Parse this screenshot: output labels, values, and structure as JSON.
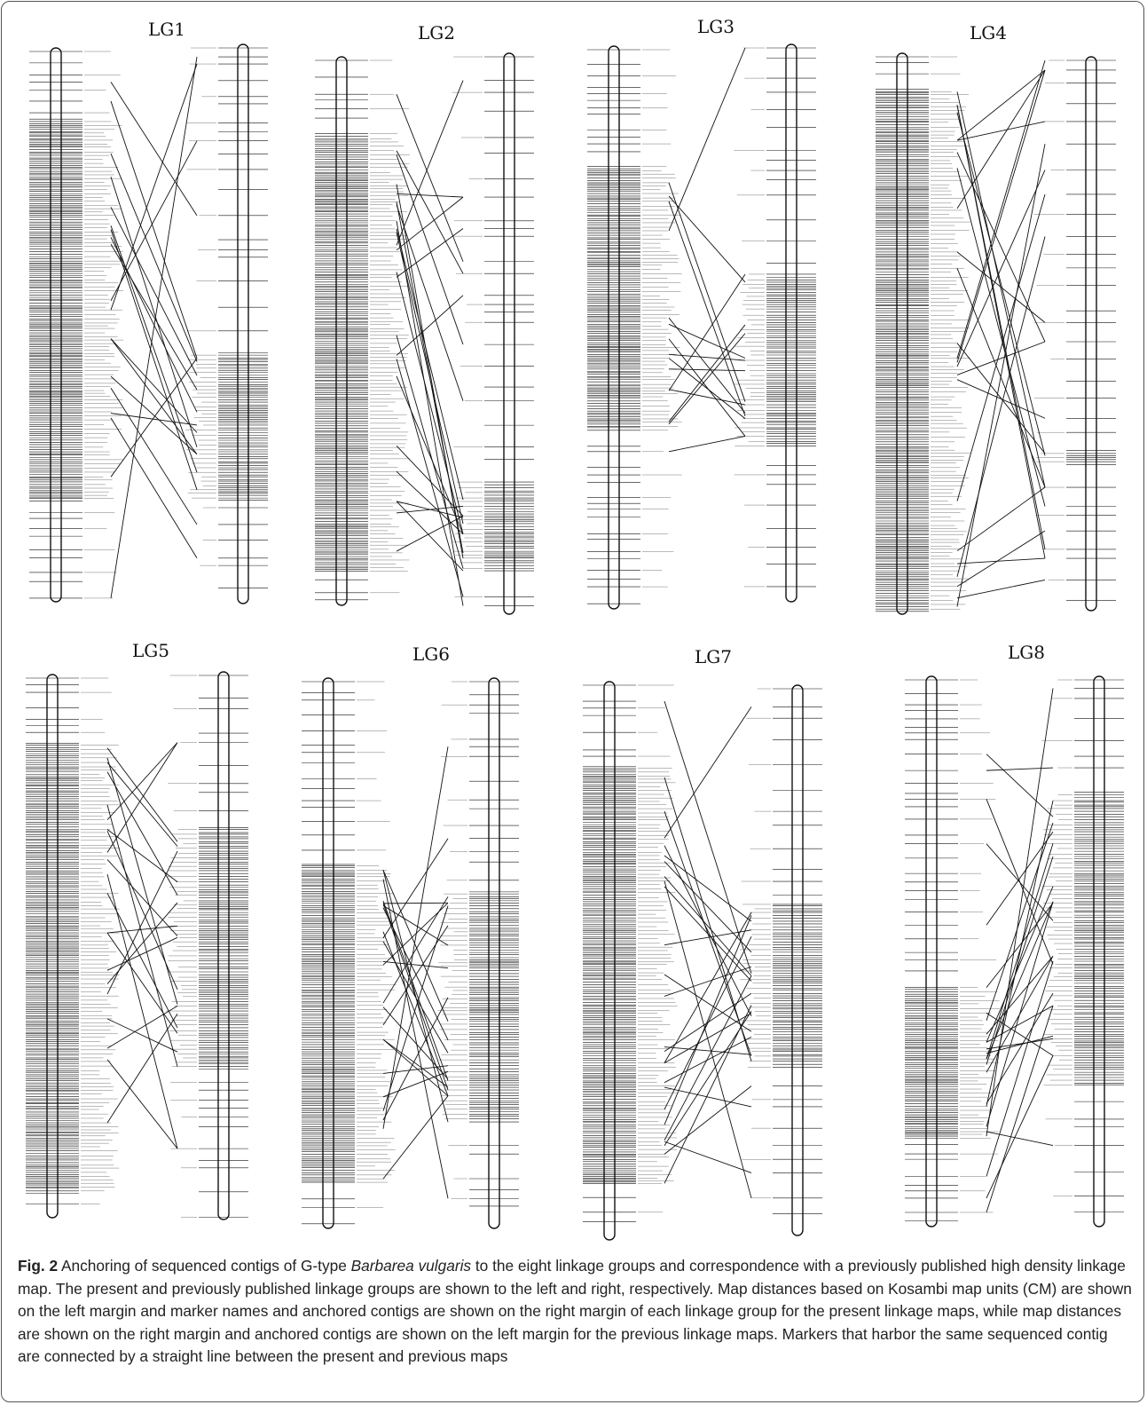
{
  "figure": {
    "panels": [
      {
        "title": "LG1"
      },
      {
        "title": "LG2"
      },
      {
        "title": "LG3"
      },
      {
        "title": "LG4"
      },
      {
        "title": "LG5"
      },
      {
        "title": "LG6"
      },
      {
        "title": "LG7"
      },
      {
        "title": "LG8"
      }
    ],
    "caption": {
      "label": "Fig. 2",
      "text_before": " Anchoring of sequenced contigs of G-type ",
      "species": "Barbarea vulgaris",
      "text_after": " to the eight linkage groups and correspondence with a previously published high density linkage map. The present and previously published linkage groups are shown to the left and right, respectively. Map distances based on Kosambi map units (CM) are shown on the left margin and marker names and anchored contigs are shown on the right margin of each linkage group for the present linkage maps, while map distances are shown on the right margin and anchored contigs are shown on the left margin for the previous linkage maps. Markers that harbor the same sequenced contig are connected by a straight line between the present and previous maps"
    }
  }
}
